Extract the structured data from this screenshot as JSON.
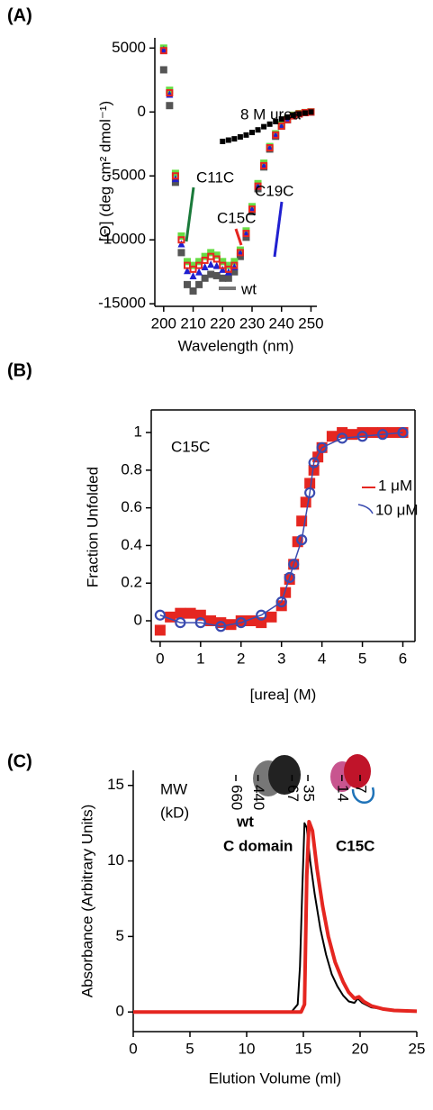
{
  "chart_data": [
    {
      "type": "scatter",
      "panel_label": "(A)",
      "xlabel": "Wavelength (nm)",
      "ylabel": "[Θ] (deg cm² dmol⁻¹)",
      "xlim": [
        197,
        252
      ],
      "ylim": [
        -15200,
        5800
      ],
      "xticks": [
        200,
        210,
        220,
        230,
        240,
        250
      ],
      "yticks": [
        -15000,
        -10000,
        -5000,
        0,
        5000
      ],
      "x": [
        200,
        202,
        204,
        206,
        208,
        210,
        212,
        214,
        216,
        218,
        220,
        222,
        224,
        226,
        228,
        230,
        232,
        234,
        236,
        238,
        240,
        242,
        244,
        246,
        248,
        250
      ],
      "series": [
        {
          "name": "wt",
          "color": "#555555",
          "label_color": "#777777",
          "marker": "square",
          "values": [
            3300,
            500,
            -5500,
            -11000,
            -13500,
            -14000,
            -13500,
            -13000,
            -12700,
            -12800,
            -13000,
            -13000,
            -12500,
            -11300,
            -9800,
            -7800,
            -6000,
            -4300,
            -2900,
            -1900,
            -1100,
            -600,
            -300,
            -150,
            -50,
            0
          ]
        },
        {
          "name": "C11C",
          "color": "#66dd44",
          "label_color": "#1a7a3a",
          "marker": "square",
          "values": [
            5000,
            1700,
            -4800,
            -9700,
            -11700,
            -12000,
            -11700,
            -11300,
            -11000,
            -11200,
            -11700,
            -12000,
            -11700,
            -10800,
            -9300,
            -7400,
            -5600,
            -4000,
            -2700,
            -1700,
            -1000,
            -550,
            -250,
            -120,
            -40,
            0
          ]
        },
        {
          "name": "C19C",
          "color": "#2020d0",
          "label_color": "#2020d0",
          "marker": "triangle",
          "values": [
            4900,
            1400,
            -5200,
            -10300,
            -12400,
            -12800,
            -12500,
            -12100,
            -11900,
            -12000,
            -12300,
            -12500,
            -12100,
            -11000,
            -9500,
            -7600,
            -5800,
            -4200,
            -2800,
            -1800,
            -1100,
            -600,
            -300,
            -150,
            -50,
            0
          ]
        },
        {
          "name": "C15C",
          "color": "#e52620",
          "label_color": "#e52620",
          "marker": "square-open",
          "values": [
            4800,
            1500,
            -5000,
            -10000,
            -12000,
            -12300,
            -12000,
            -11600,
            -11300,
            -11500,
            -12000,
            -12300,
            -12000,
            -11000,
            -9500,
            -7600,
            -5800,
            -4200,
            -2800,
            -1800,
            -1100,
            -600,
            -300,
            -150,
            -50,
            0
          ]
        },
        {
          "name": "8 M urea",
          "color": "#000000",
          "label_color": "#000000",
          "marker": "square",
          "values": [
            null,
            null,
            null,
            null,
            null,
            null,
            null,
            null,
            null,
            null,
            -2300,
            -2200,
            -2100,
            -1950,
            -1800,
            -1600,
            -1400,
            -1150,
            -950,
            -750,
            -550,
            -400,
            -250,
            -150,
            -80,
            0
          ]
        }
      ]
    },
    {
      "type": "scatter",
      "panel_label": "(B)",
      "xlabel": "[urea] (M)",
      "ylabel": "Fraction Unfolded",
      "xlim": [
        -0.22,
        6.3
      ],
      "ylim": [
        -0.11,
        1.12
      ],
      "xticks": [
        0,
        1,
        2,
        3,
        4,
        5,
        6
      ],
      "yticks": [
        0,
        0.2,
        0.4,
        0.6,
        0.8,
        1
      ],
      "annotations": [
        {
          "text": "C15C",
          "color": "#000000"
        }
      ],
      "series": [
        {
          "name": "1 μM",
          "color": "#e52620",
          "marker": "square",
          "line": false,
          "x": [
            0,
            0.25,
            0.5,
            0.75,
            1,
            1.25,
            1.5,
            1.75,
            2,
            2.25,
            2.5,
            2.75,
            3,
            3.1,
            3.2,
            3.3,
            3.4,
            3.5,
            3.6,
            3.7,
            3.8,
            3.9,
            4,
            4.25,
            4.5,
            4.75,
            5,
            5.25,
            5.5,
            5.75,
            6
          ],
          "values": [
            -0.05,
            0.02,
            0.04,
            0.04,
            0.03,
            0,
            -0.01,
            -0.02,
            0,
            0,
            -0.01,
            0.02,
            0.08,
            0.15,
            0.22,
            0.3,
            0.42,
            0.53,
            0.63,
            0.73,
            0.8,
            0.87,
            0.92,
            0.98,
            1,
            0.99,
            1,
            1,
            1,
            1,
            1
          ]
        },
        {
          "name": "10 μM",
          "color": "#3a4bb0",
          "marker": "circle-open",
          "line": true,
          "x": [
            0,
            0.5,
            1,
            1.5,
            2,
            2.5,
            3,
            3.2,
            3.3,
            3.5,
            3.7,
            3.8,
            4,
            4.5,
            5,
            5.5,
            6
          ],
          "values": [
            0.03,
            -0.01,
            -0.01,
            -0.03,
            -0.01,
            0.03,
            0.1,
            0.23,
            0.3,
            0.43,
            0.68,
            0.84,
            0.92,
            0.97,
            0.98,
            0.99,
            1
          ]
        }
      ]
    },
    {
      "type": "line",
      "panel_label": "(C)",
      "xlabel": "Elution Volume (ml)",
      "ylabel": "Absorbance (Arbitrary Units)",
      "xlim": [
        0,
        25
      ],
      "ylim": [
        -1.3,
        16
      ],
      "xticks": [
        0,
        5,
        10,
        15,
        20,
        25
      ],
      "yticks": [
        0,
        5,
        10,
        15
      ],
      "top_title": [
        "MW",
        "(kD)"
      ],
      "top_ticks": [
        {
          "value": 9.05,
          "label": "660"
        },
        {
          "value": 11.0,
          "label": "440"
        },
        {
          "value": 14.0,
          "label": "67"
        },
        {
          "value": 15.4,
          "label": "35"
        },
        {
          "value": 18.4,
          "label": "14"
        },
        {
          "value": 20.0,
          "label": "7"
        }
      ],
      "annotations": [
        {
          "text": "C domain",
          "color": "#222222"
        }
      ],
      "series": [
        {
          "name": "wt",
          "color": "#000000",
          "label_color": "#222222",
          "width": 2,
          "x": [
            0,
            5,
            10,
            13,
            14,
            14.5,
            14.7,
            14.9,
            15.1,
            15.3,
            15.6,
            16,
            16.5,
            17,
            17.5,
            18,
            18.5,
            19,
            19.5,
            19.8,
            20.2,
            21,
            22,
            23,
            25
          ],
          "values": [
            0,
            0,
            0,
            0,
            0.05,
            0.5,
            3,
            8,
            12.5,
            12.2,
            10,
            7.8,
            5.5,
            3.8,
            2.5,
            1.7,
            1.1,
            0.7,
            0.6,
            0.9,
            0.6,
            0.3,
            0.2,
            0.1,
            0.05
          ]
        },
        {
          "name": "C15C",
          "color": "#e52620",
          "label_color": "#e52620",
          "width": 4,
          "x": [
            0,
            13,
            14.8,
            15.1,
            15.3,
            15.5,
            15.8,
            16.2,
            16.7,
            17.2,
            17.8,
            18.5,
            19,
            19.5,
            19.9,
            20.3,
            21,
            22,
            23,
            25
          ],
          "values": [
            0,
            0,
            0,
            0.5,
            9,
            12.6,
            12,
            9.5,
            7,
            5,
            3.3,
            2,
            1.3,
            0.9,
            1,
            0.7,
            0.4,
            0.2,
            0.1,
            0.05
          ]
        }
      ]
    }
  ]
}
